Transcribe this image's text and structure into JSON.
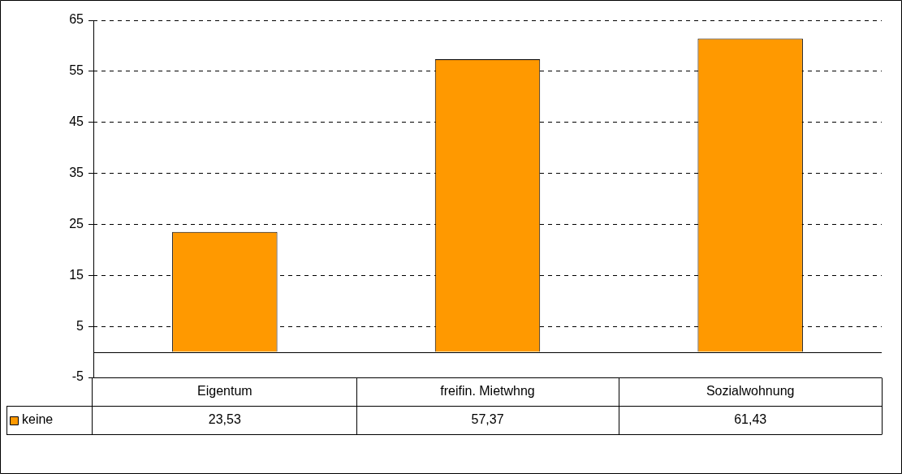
{
  "chart_data": {
    "type": "bar",
    "categories": [
      "Eigentum",
      "freifin. Mietwhng",
      "Sozialwohnung"
    ],
    "series": [
      {
        "name": "keine",
        "color": "#ff9900",
        "values": [
          23.53,
          57.37,
          61.43
        ],
        "value_labels": [
          "23,53",
          "57,37",
          "61,43"
        ]
      }
    ],
    "ylim": [
      -5,
      65
    ],
    "yticks": [
      -5,
      5,
      15,
      25,
      35,
      45,
      55,
      65
    ],
    "grid": "y",
    "legend": "bottom"
  }
}
